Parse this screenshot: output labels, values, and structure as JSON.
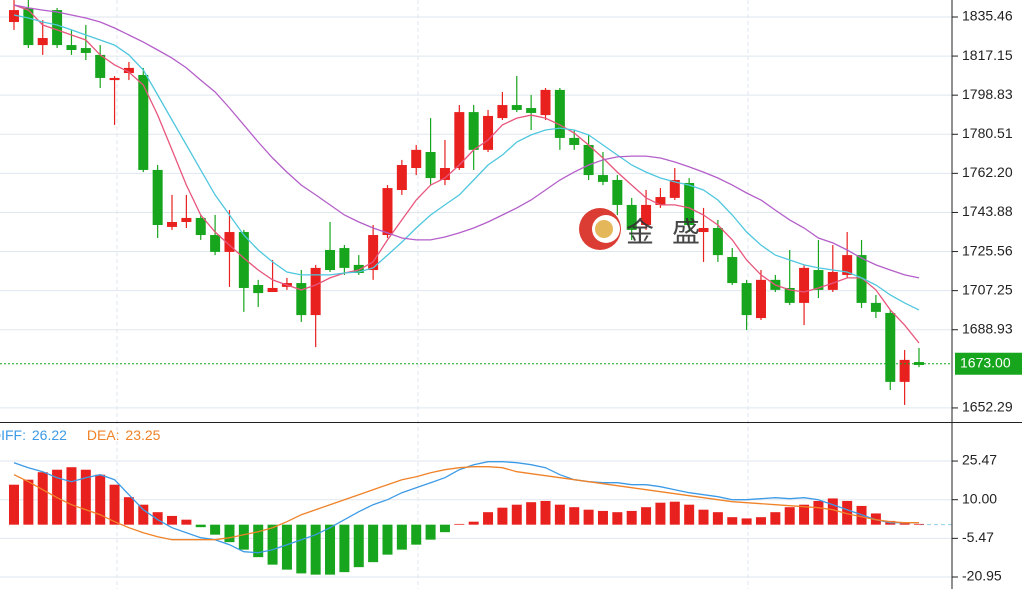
{
  "chart_data": [
    {
      "type": "candlestick",
      "ylim": [
        1645.7,
        1843.42
      ],
      "yticks": [
        1835.46,
        1817.15,
        1798.83,
        1780.51,
        {
          "value": 1762.2,
          "label": "1762.20"
        },
        1743.88,
        1725.56,
        1707.25,
        1688.93,
        1652.29
      ],
      "grid": true,
      "up_color": "#e8201e",
      "down_color": "#16a51c",
      "open": [
        1833.1,
        1839.7,
        1822.3,
        1838.7,
        1822.3,
        1820.9,
        1817.7,
        1805.9,
        1809.2,
        1808.3,
        1763.8,
        1737.1,
        1739.4,
        1741.3,
        1733.3,
        1725.4,
        1734.7,
        1709.9,
        1706.6,
        1709.0,
        1710.8,
        1695.8,
        1726.3,
        1727.2,
        1719.3,
        1716.9,
        1733.3,
        1754.4,
        1764.7,
        1772.2,
        1759.1,
        1764.7,
        1790.9,
        1773.2,
        1788.1,
        1794.2,
        1792.8,
        1789.5,
        1801.3,
        1778.8,
        1775.5,
        1761.4,
        1759.1,
        1747.4,
        1738.0,
        1747.4,
        1750.7,
        1757.7,
        1734.7,
        1736.6,
        1723.0,
        1710.8,
        1694.4,
        1712.3,
        1708.5,
        1701.5,
        1716.9,
        1707.6,
        1714.6,
        1723.9,
        1701.5,
        1696.8,
        1664.5,
        1673.8
      ],
      "high": [
        1843.4,
        1843.4,
        1834.0,
        1839.7,
        1829.4,
        1831.7,
        1822.3,
        1807.8,
        1814.4,
        1811.6,
        1766.1,
        1752.1,
        1752.1,
        1742.7,
        1742.7,
        1745.0,
        1735.7,
        1712.3,
        1721.6,
        1713.2,
        1716.9,
        1719.3,
        1739.4,
        1728.6,
        1723.9,
        1738.0,
        1756.7,
        1768.5,
        1775.5,
        1788.1,
        1777.8,
        1794.2,
        1794.2,
        1791.9,
        1800.3,
        1807.8,
        1798.9,
        1802.2,
        1802.2,
        1782.5,
        1780.2,
        1772.2,
        1761.4,
        1750.7,
        1754.4,
        1755.3,
        1764.7,
        1760.0,
        1746.0,
        1740.4,
        1727.2,
        1712.3,
        1716.9,
        1714.6,
        1726.3,
        1719.3,
        1731.0,
        1728.6,
        1734.7,
        1731.0,
        1705.2,
        1698.2,
        1679.4,
        1680.4
      ],
      "low": [
        1829.4,
        1820.9,
        1817.7,
        1820.9,
        1817.7,
        1815.3,
        1802.2,
        1784.9,
        1805.9,
        1762.8,
        1731.9,
        1735.7,
        1736.6,
        1731.0,
        1723.9,
        1709.0,
        1697.3,
        1699.6,
        1706.6,
        1707.6,
        1692.6,
        1680.8,
        1716.0,
        1714.6,
        1714.6,
        1712.3,
        1731.9,
        1752.1,
        1761.4,
        1756.7,
        1756.7,
        1763.8,
        1763.8,
        1772.2,
        1787.2,
        1790.9,
        1782.5,
        1787.2,
        1773.2,
        1773.2,
        1759.1,
        1756.7,
        1742.7,
        1731.0,
        1735.7,
        1746.0,
        1749.7,
        1734.7,
        1720.7,
        1720.7,
        1709.9,
        1688.8,
        1693.5,
        1706.6,
        1700.5,
        1691.1,
        1703.8,
        1706.6,
        1713.2,
        1699.1,
        1694.4,
        1660.7,
        1653.7,
        1671.4
      ],
      "close": [
        1838.7,
        1822.3,
        1825.6,
        1822.3,
        1820.0,
        1818.6,
        1806.9,
        1806.9,
        1811.6,
        1763.8,
        1738.0,
        1739.4,
        1741.3,
        1733.3,
        1725.4,
        1734.7,
        1708.5,
        1706.1,
        1708.5,
        1710.8,
        1695.8,
        1717.9,
        1716.9,
        1717.9,
        1715.5,
        1733.3,
        1755.3,
        1766.1,
        1773.2,
        1760.0,
        1764.7,
        1790.9,
        1773.2,
        1789.1,
        1794.2,
        1791.9,
        1790.5,
        1801.3,
        1778.8,
        1775.5,
        1761.4,
        1758.2,
        1747.4,
        1735.7,
        1747.4,
        1751.1,
        1759.1,
        1738.0,
        1736.6,
        1723.9,
        1710.8,
        1695.8,
        1712.3,
        1707.6,
        1701.5,
        1717.9,
        1707.6,
        1716.0,
        1723.9,
        1701.5,
        1697.3,
        1664.5,
        1674.8,
        1672.4
      ],
      "series": [
        {
          "color": "#e8557c",
          "values": [
            1841.1,
            1838.7,
            1831.7,
            1829.4,
            1827.0,
            1824.7,
            1817.7,
            1813.0,
            1809.7,
            1803.6,
            1789.5,
            1773.2,
            1756.7,
            1742.7,
            1734.7,
            1728.6,
            1722.5,
            1716.9,
            1712.3,
            1709.9,
            1707.6,
            1709.9,
            1713.2,
            1715.5,
            1716.9,
            1720.7,
            1731.0,
            1740.4,
            1749.7,
            1756.7,
            1760.0,
            1766.1,
            1773.2,
            1777.8,
            1784.9,
            1788.1,
            1789.5,
            1788.1,
            1784.9,
            1781.1,
            1775.5,
            1769.4,
            1762.8,
            1756.7,
            1750.7,
            1747.4,
            1747.4,
            1746.0,
            1742.7,
            1738.0,
            1731.0,
            1721.6,
            1714.6,
            1709.9,
            1707.6,
            1706.6,
            1708.5,
            1710.8,
            1713.2,
            1713.2,
            1707.6,
            1698.2,
            1691.1,
            1682.7
          ]
        },
        {
          "color": "#4fc7de",
          "values": [
            1836.4,
            1835.0,
            1833.1,
            1831.7,
            1829.4,
            1827.0,
            1824.7,
            1822.3,
            1817.7,
            1810.6,
            1798.9,
            1787.2,
            1775.5,
            1763.8,
            1752.1,
            1742.7,
            1733.3,
            1726.3,
            1720.7,
            1716.0,
            1714.6,
            1714.6,
            1714.6,
            1715.5,
            1716.0,
            1717.9,
            1723.9,
            1730.0,
            1736.6,
            1742.7,
            1747.4,
            1752.1,
            1759.1,
            1766.1,
            1770.8,
            1776.9,
            1780.2,
            1782.5,
            1783.4,
            1782.5,
            1780.2,
            1775.5,
            1770.8,
            1766.1,
            1762.8,
            1760.0,
            1758.2,
            1756.7,
            1754.4,
            1749.7,
            1742.7,
            1734.7,
            1728.6,
            1723.9,
            1721.6,
            1719.3,
            1717.9,
            1716.9,
            1716.0,
            1713.2,
            1709.9,
            1705.2,
            1701.5,
            1698.2
          ]
        },
        {
          "color": "#b45fc9",
          "values": [
            1841.1,
            1839.7,
            1838.7,
            1837.8,
            1836.4,
            1835.0,
            1833.1,
            1830.3,
            1827.0,
            1823.7,
            1820.0,
            1816.2,
            1811.6,
            1805.9,
            1800.3,
            1792.8,
            1784.9,
            1776.9,
            1769.4,
            1762.8,
            1756.7,
            1752.1,
            1747.4,
            1742.7,
            1739.4,
            1736.6,
            1734.3,
            1731.9,
            1731.0,
            1731.0,
            1732.4,
            1734.3,
            1736.6,
            1739.4,
            1742.7,
            1746.0,
            1749.7,
            1754.4,
            1759.1,
            1762.8,
            1766.1,
            1768.5,
            1769.9,
            1770.3,
            1770.3,
            1769.4,
            1767.5,
            1765.2,
            1762.8,
            1760.0,
            1756.7,
            1753.0,
            1749.7,
            1745.0,
            1740.4,
            1736.6,
            1731.9,
            1729.6,
            1726.3,
            1722.5,
            1719.3,
            1716.9,
            1714.6,
            1713.2
          ]
        }
      ],
      "last_price": {
        "value": 1673,
        "label": "1673.00"
      },
      "last_price_color": "#16a51c",
      "watermark": [
        "金",
        "盛"
      ]
    },
    {
      "type": "macd",
      "ylim": [
        -25.75,
        40.7
      ],
      "yticks": [
        25.47,
        {
          "value": 10,
          "label": "10.00"
        },
        -5.47,
        -20.95
      ],
      "grid": true,
      "up_color": "#e8201e",
      "down_color": "#16a51c",
      "histogram": [
        16,
        18,
        21,
        22,
        23,
        22,
        20,
        16,
        11,
        8,
        5,
        3.5,
        2,
        -1,
        -4,
        -7,
        -10,
        -13,
        -16,
        -18,
        -19.5,
        -20,
        -20,
        -19,
        -17,
        -15,
        -12,
        -10,
        -8,
        -6,
        -3,
        0.3,
        1.2,
        5,
        6.8,
        8,
        9,
        9.5,
        8,
        7,
        6,
        5.5,
        5,
        5.5,
        7,
        8.8,
        9.2,
        8,
        6,
        5,
        3,
        2.5,
        3,
        5,
        7,
        8,
        9.5,
        10.5,
        9.5,
        7.5,
        4.5,
        1.5,
        0.5,
        0.3
      ],
      "series": [
        {
          "name": "DIFF:",
          "legend_value": 26.22,
          "color": "#3d9be6",
          "values": [
            24.8,
            22.8,
            21.2,
            18.8,
            17.2,
            18.8,
            20,
            18,
            12,
            6,
            2,
            -1.2,
            -3.2,
            -5.2,
            -6,
            -8,
            -10.8,
            -11.2,
            -10,
            -8,
            -6,
            -4,
            -1.2,
            2,
            5.2,
            8,
            10,
            12.8,
            14.8,
            16.8,
            18.8,
            22,
            24,
            25.2,
            25.2,
            24.8,
            24,
            22.8,
            20,
            18,
            17.2,
            16.8,
            16.8,
            16,
            16,
            15.2,
            14,
            12.8,
            12,
            11.2,
            10,
            10,
            10.4,
            10.8,
            10.4,
            10.8,
            10,
            8,
            6,
            4,
            2,
            0.8,
            0.8,
            0.8
          ]
        },
        {
          "name": "DEA:",
          "legend_value": 23.25,
          "color": "#f08228",
          "values": [
            20,
            17.2,
            14,
            10.8,
            8,
            6,
            4,
            1.2,
            -1.2,
            -3.2,
            -4.8,
            -6,
            -6,
            -6,
            -6,
            -5.2,
            -4,
            -2.8,
            -1.2,
            1.2,
            4,
            6,
            8,
            10,
            12,
            14,
            16,
            18,
            19.2,
            20.8,
            22,
            22.8,
            23.2,
            23.2,
            22.8,
            21.2,
            20.4,
            19.6,
            18.8,
            18,
            17.2,
            16.4,
            15.6,
            14.8,
            14,
            13.2,
            12.4,
            11.6,
            10.8,
            10,
            9.2,
            8.8,
            8.4,
            8,
            7.6,
            7.2,
            6.8,
            6,
            4.4,
            3.2,
            2,
            1.2,
            0.8,
            0.8
          ]
        }
      ]
    }
  ]
}
